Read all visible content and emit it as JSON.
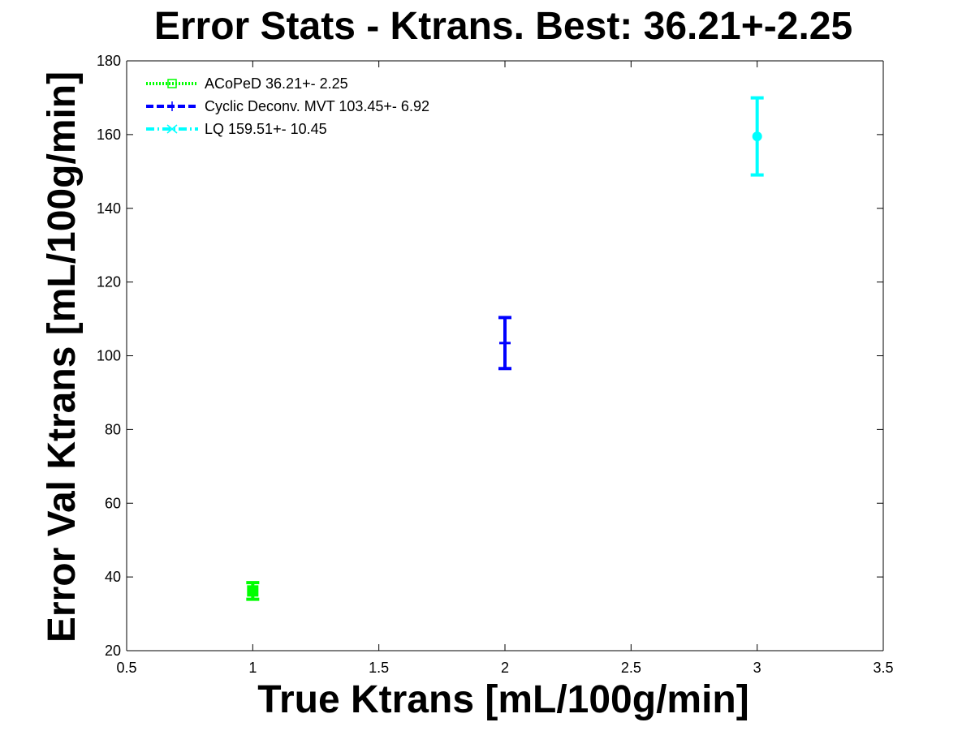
{
  "chart_data": {
    "type": "scatter",
    "title": "Error Stats - Ktrans. Best: 36.21+-2.25",
    "xlabel": "True Ktrans [mL/100g/min]",
    "ylabel": "Error Val Ktrans [mL/100g/min]",
    "xlim": [
      0.5,
      3.5
    ],
    "ylim": [
      20,
      180
    ],
    "xticks": [
      0.5,
      1,
      1.5,
      2,
      2.5,
      3,
      3.5
    ],
    "xtick_labels": [
      "0.5",
      "1",
      "1.5",
      "2",
      "2.5",
      "3",
      "3.5"
    ],
    "yticks": [
      20,
      40,
      60,
      80,
      100,
      120,
      140,
      160,
      180
    ],
    "ytick_labels": [
      "20",
      "40",
      "60",
      "80",
      "100",
      "120",
      "140",
      "160",
      "180"
    ],
    "grid": false,
    "legend_position": "top-left",
    "series": [
      {
        "name": "ACoPeD 36.21+- 2.25",
        "x": 1,
        "y": 36.21,
        "err": 2.25,
        "color": "#00ff00",
        "marker": "square",
        "line_style": "dotted"
      },
      {
        "name": "Cyclic Deconv. MVT 103.45+- 6.92",
        "x": 2,
        "y": 103.45,
        "err": 6.92,
        "color": "#0000ff",
        "marker": "plus",
        "line_style": "dashed"
      },
      {
        "name": "LQ 159.51+- 10.45",
        "x": 3,
        "y": 159.51,
        "err": 10.45,
        "color": "#00ffff",
        "marker": "star",
        "line_style": "dashdot"
      }
    ]
  }
}
